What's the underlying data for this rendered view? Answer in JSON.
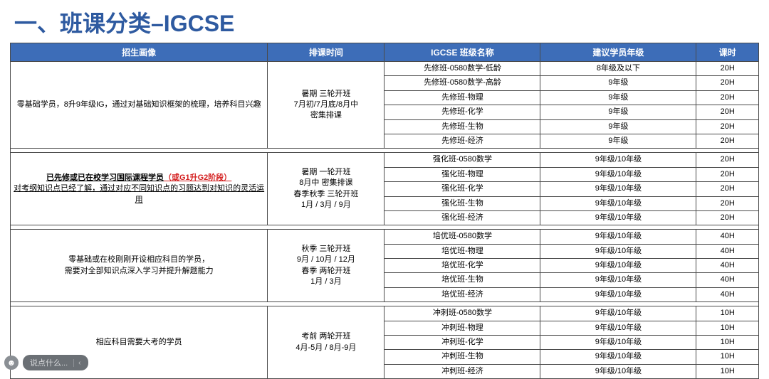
{
  "title": "一、班课分类–IGCSE",
  "colors": {
    "heading": "#2e5aa0",
    "header_bg": "#3d6db8",
    "header_text": "#ffffff",
    "border": "#4a4a4a",
    "highlight_red": "#d42020"
  },
  "headers": [
    "招生画像",
    "排课时间",
    "IGCSE 班级名称",
    "建议学员年级",
    "课时"
  ],
  "sections": [
    {
      "profile": "零基础学员，8升9年级IG，通过对基础知识框架的梳理，培养科目兴趣",
      "schedule": "暑期 三轮开班\n7月初/7月底/8月中\n密集排课",
      "rows": [
        {
          "name": "先修班-0580数学-低龄",
          "grade": "8年级及以下",
          "hours": "20H"
        },
        {
          "name": "先修班-0580数学-高龄",
          "grade": "9年级",
          "hours": "20H"
        },
        {
          "name": "先修班-物理",
          "grade": "9年级",
          "hours": "20H"
        },
        {
          "name": "先修班-化学",
          "grade": "9年级",
          "hours": "20H"
        },
        {
          "name": "先修班-生物",
          "grade": "9年级",
          "hours": "20H"
        },
        {
          "name": "先修班-经济",
          "grade": "9年级",
          "hours": "20H"
        }
      ]
    },
    {
      "profile_line1_a": "已先修或已在校学习国际课程学员",
      "profile_line1_b": "（或G1升G2阶段）",
      "profile_line2": "对考纲知识点已经了解，通过对应不同知识点的习题达到对知识的灵活运用",
      "schedule": "暑期 一轮开班\n8月中 密集排课\n春季秋季 三轮开班\n1月 / 3月 / 9月",
      "rows": [
        {
          "name": "强化班-0580数学",
          "grade": "9年级/10年级",
          "hours": "20H"
        },
        {
          "name": "强化班-物理",
          "grade": "9年级/10年级",
          "hours": "20H"
        },
        {
          "name": "强化班-化学",
          "grade": "9年级/10年级",
          "hours": "20H"
        },
        {
          "name": "强化班-生物",
          "grade": "9年级/10年级",
          "hours": "20H"
        },
        {
          "name": "强化班-经济",
          "grade": "9年级/10年级",
          "hours": "20H"
        }
      ]
    },
    {
      "profile": "零基础或在校刚刚开设相应科目的学员，\n需要对全部知识点深入学习并提升解题能力",
      "schedule": "秋季 三轮开班\n9月 / 10月 / 12月\n春季 两轮开班\n1月 / 3月",
      "rows": [
        {
          "name": "培优班-0580数学",
          "grade": "9年级/10年级",
          "hours": "40H"
        },
        {
          "name": "培优班-物理",
          "grade": "9年级/10年级",
          "hours": "40H"
        },
        {
          "name": "培优班-化学",
          "grade": "9年级/10年级",
          "hours": "40H"
        },
        {
          "name": "培优班-生物",
          "grade": "9年级/10年级",
          "hours": "40H"
        },
        {
          "name": "培优班-经济",
          "grade": "9年级/10年级",
          "hours": "40H"
        }
      ]
    },
    {
      "profile": "相应科目需要大考的学员",
      "schedule": "考前 两轮开班\n4月-5月 / 8月-9月",
      "rows": [
        {
          "name": "冲刺班-0580数学",
          "grade": "9年级/10年级",
          "hours": "10H"
        },
        {
          "name": "冲刺班-物理",
          "grade": "9年级/10年级",
          "hours": "10H"
        },
        {
          "name": "冲刺班-化学",
          "grade": "9年级/10年级",
          "hours": "10H"
        },
        {
          "name": "冲刺班-生物",
          "grade": "9年级/10年级",
          "hours": "10H"
        },
        {
          "name": "冲刺班-经济",
          "grade": "9年级/10年级",
          "hours": "10H"
        }
      ]
    }
  ],
  "chat": {
    "avatar_glyph": "☻",
    "placeholder": "说点什么...",
    "chevron": "‹"
  }
}
